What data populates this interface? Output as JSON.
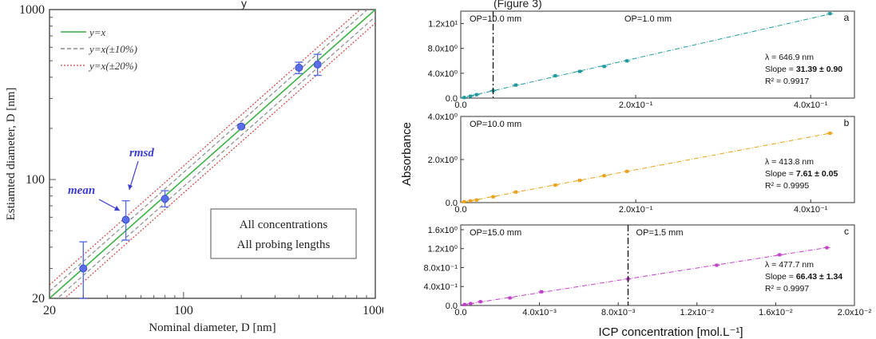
{
  "chart_data": [
    {
      "type": "scatter",
      "panel": "left",
      "xlabel": "Nominal diameter, D [nm]",
      "ylabel": "Estiamted diameter, D [nm]",
      "xscale": "log",
      "yscale": "log",
      "xlim": [
        20,
        1000
      ],
      "ylim": [
        20,
        1000
      ],
      "xticks": [
        "20",
        "100",
        "1000"
      ],
      "yticks": [
        "20",
        "100",
        "1000"
      ],
      "legend": {
        "placement": "top-left",
        "entries": [
          "y=x",
          "y=x(±10%)",
          "y=x(±20%)"
        ]
      },
      "line_colors": {
        "y=x": "#3cb043",
        "y=x(±10%)": "#8a8a8a",
        "y=x(±20%)": "#d04040"
      },
      "marker_color": "#5b6ee8",
      "points": [
        {
          "x": 30,
          "y": 30,
          "err_lo": 20,
          "err_hi": 43
        },
        {
          "x": 50,
          "y": 58,
          "err_lo": 44,
          "err_hi": 75
        },
        {
          "x": 80,
          "y": 77,
          "err_lo": 69,
          "err_hi": 86
        },
        {
          "x": 200,
          "y": 205,
          "err_lo": 201,
          "err_hi": 209
        },
        {
          "x": 400,
          "y": 455,
          "err_lo": 420,
          "err_hi": 490
        },
        {
          "x": 500,
          "y": 475,
          "err_lo": 410,
          "err_hi": 545
        }
      ],
      "annotations": {
        "mean": "mean",
        "rmsd": "rmsd"
      },
      "info_box": [
        "All concentrations",
        "All probing lengths"
      ]
    },
    {
      "type": "scatter",
      "panel": "a",
      "label": "a",
      "xlim": [
        0,
        0.45
      ],
      "ylim": [
        0,
        14
      ],
      "xticks": [
        "0.0",
        "2.0x10⁻¹",
        "4.0x10⁻¹"
      ],
      "yticks": [
        "0.0",
        "4.0x10⁰",
        "8.0x10⁰",
        "1.2x10¹"
      ],
      "x": [
        0.004,
        0.011,
        0.018,
        0.037,
        0.063,
        0.108,
        0.136,
        0.164,
        0.19,
        0.422
      ],
      "y": [
        0.1,
        0.3,
        0.55,
        1.2,
        2.1,
        3.6,
        4.3,
        5.1,
        6.0,
        13.6
      ],
      "color": "#1f9a9a",
      "divider_x": 0.037,
      "op_left": "OP=10.0 mm",
      "op_right": "OP=1.0 mm",
      "stats": [
        "λ = 646.9 nm",
        "Slope = ",
        "31.39 ± 0.90",
        "R² = 0.9917"
      ]
    },
    {
      "type": "scatter",
      "panel": "b",
      "label": "b",
      "xlim": [
        0,
        0.45
      ],
      "ylim": [
        0,
        4
      ],
      "xticks": [
        "0.0",
        "2.0x10⁻¹",
        "4.0x10⁻¹"
      ],
      "yticks": [
        "0.0",
        "2.0x10⁰",
        "4.0x10⁰"
      ],
      "x": [
        0.004,
        0.011,
        0.018,
        0.037,
        0.063,
        0.108,
        0.136,
        0.164,
        0.19,
        0.422
      ],
      "y": [
        0.04,
        0.08,
        0.12,
        0.27,
        0.49,
        0.81,
        1.03,
        1.25,
        1.45,
        3.22
      ],
      "color": "#e8a21e",
      "op_left": "OP=10.0 mm",
      "stats": [
        "λ = 413.8 nm",
        "Slope = ",
        "7.61 ± 0.05",
        "R² = 0.9995"
      ]
    },
    {
      "type": "scatter",
      "panel": "c",
      "label": "c",
      "xlim": [
        0,
        0.02
      ],
      "ylim": [
        0,
        1.7
      ],
      "xticks": [
        "0.0",
        "4.0x10⁻³",
        "8.0x10⁻³",
        "1.2x10⁻²",
        "1.6x10⁻²",
        "2.0x10⁻²"
      ],
      "yticks": [
        "0.0",
        "4.0x10⁻¹",
        "8.0x10⁻¹",
        "1.2x10⁰",
        "1.6x10⁰"
      ],
      "x": [
        0.0002,
        0.0005,
        0.001,
        0.0025,
        0.0041,
        0.0085,
        0.013,
        0.0162,
        0.0186
      ],
      "y": [
        0.02,
        0.04,
        0.08,
        0.16,
        0.29,
        0.56,
        0.85,
        1.07,
        1.22
      ],
      "color": "#c040c8",
      "divider_x": 0.0085,
      "op_left": "OP=15.0 mm",
      "op_right": "OP=1.5 mm",
      "stats": [
        "λ = 477.7 nm",
        "Slope = ",
        "66.43 ± 1.34",
        "R² = 0.9997"
      ]
    }
  ],
  "right_ylabel": "Absorbance",
  "right_xlabel": "ICP concentration [mol.L⁻¹]",
  "top_fragment_left": "y",
  "top_fragment_right": "(Figure 3)"
}
